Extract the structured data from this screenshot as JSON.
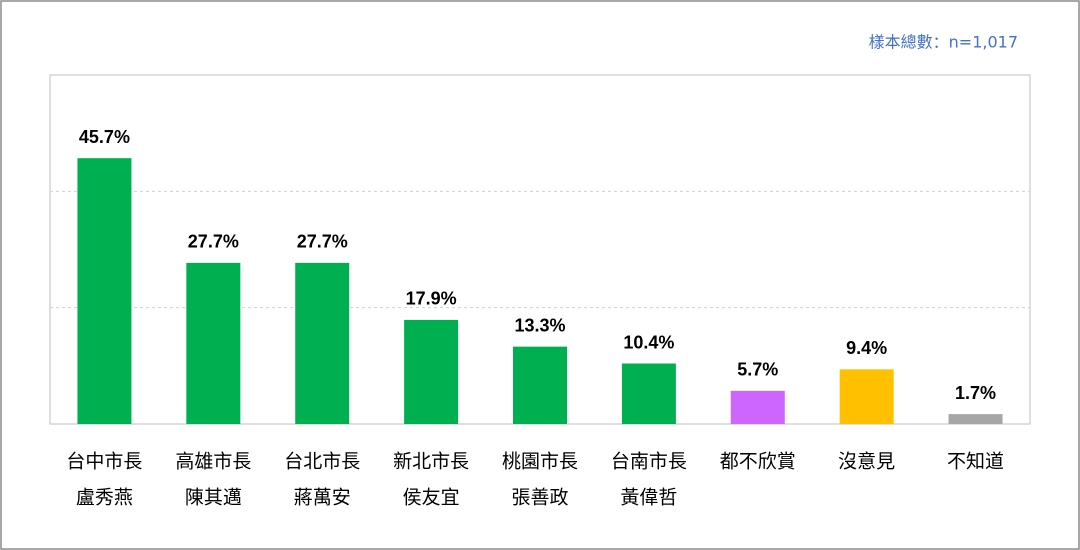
{
  "chart_data": {
    "type": "bar",
    "note": "樣本總數：n=1,017",
    "categories": [
      [
        "台中市長",
        "盧秀燕"
      ],
      [
        "高雄市長",
        "陳其邁"
      ],
      [
        "台北市長",
        "蔣萬安"
      ],
      [
        "新北市長",
        "侯友宜"
      ],
      [
        "桃園市長",
        "張善政"
      ],
      [
        "台南市長",
        "黃偉哲"
      ],
      [
        "都不欣賞"
      ],
      [
        "沒意見"
      ],
      [
        "不知道"
      ]
    ],
    "values": [
      45.7,
      27.7,
      27.7,
      17.9,
      13.3,
      10.4,
      5.7,
      9.4,
      1.7
    ],
    "value_labels": [
      "45.7%",
      "27.7%",
      "27.7%",
      "17.9%",
      "13.3%",
      "10.4%",
      "5.7%",
      "9.4%",
      "1.7%"
    ],
    "colors": [
      "#00b050",
      "#00b050",
      "#00b050",
      "#00b050",
      "#00b050",
      "#00b050",
      "#cc66ff",
      "#ffc000",
      "#a6a6a6"
    ],
    "ylim": [
      0,
      60
    ],
    "yticks": [
      20,
      40
    ],
    "grid": true
  }
}
